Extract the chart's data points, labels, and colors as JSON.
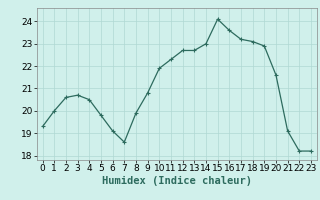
{
  "x": [
    0,
    1,
    2,
    3,
    4,
    5,
    6,
    7,
    8,
    9,
    10,
    11,
    12,
    13,
    14,
    15,
    16,
    17,
    18,
    19,
    20,
    21,
    22,
    23
  ],
  "y": [
    19.3,
    20.0,
    20.6,
    20.7,
    20.5,
    19.8,
    19.1,
    18.6,
    19.9,
    20.8,
    21.9,
    22.3,
    22.7,
    22.7,
    23.0,
    24.1,
    23.6,
    23.2,
    23.1,
    22.9,
    21.6,
    19.1,
    18.2,
    18.2
  ],
  "line_color": "#2d6b5e",
  "marker": "+",
  "bg_color": "#d0f0eb",
  "grid_color": "#b0d8d3",
  "xlabel": "Humidex (Indice chaleur)",
  "ylim": [
    17.8,
    24.6
  ],
  "xlim": [
    -0.5,
    23.5
  ],
  "yticks": [
    18,
    19,
    20,
    21,
    22,
    23,
    24
  ],
  "xticks": [
    0,
    1,
    2,
    3,
    4,
    5,
    6,
    7,
    8,
    9,
    10,
    11,
    12,
    13,
    14,
    15,
    16,
    17,
    18,
    19,
    20,
    21,
    22,
    23
  ],
  "xlabel_fontsize": 7.5,
  "tick_fontsize": 6.5
}
